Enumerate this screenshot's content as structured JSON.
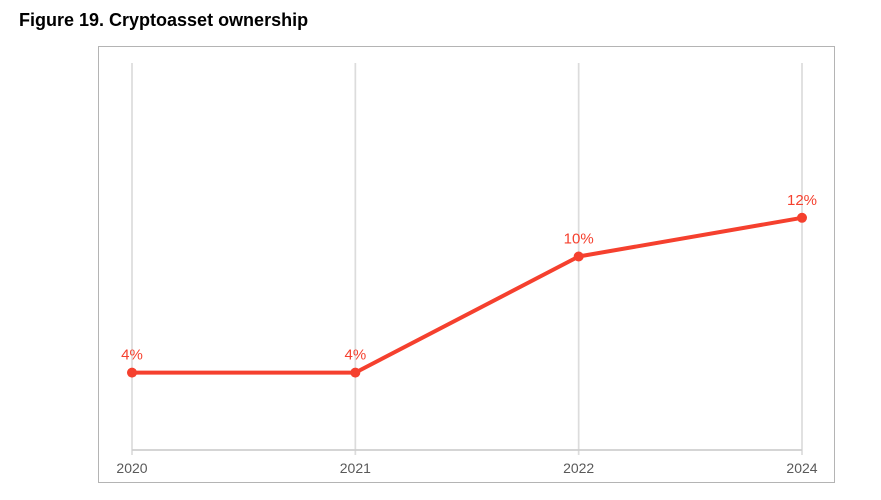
{
  "figure": {
    "title": "Figure 19. Cryptoasset ownership"
  },
  "chart_data": {
    "type": "line",
    "title": "Figure 19. Cryptoasset ownership",
    "categories": [
      "2020",
      "2021",
      "2022",
      "2024"
    ],
    "series": [
      {
        "name": "Cryptoasset ownership",
        "values": [
          4,
          4,
          10,
          12
        ]
      }
    ],
    "point_labels": [
      "4%",
      "4%",
      "10%",
      "12%"
    ],
    "xlabel": "",
    "ylabel": "",
    "ylim": [
      0,
      20
    ],
    "grid": "vertical-only",
    "legend": "none",
    "colors": {
      "line": "#f5402e",
      "point": "#f5402e",
      "data_label": "#f5402e",
      "gridline": "#dcdcdc",
      "axis_line": "#cfcfcf",
      "tick_label": "#595959",
      "plot_border": "#b4b4b4",
      "title": "#000000",
      "background": "#ffffff"
    }
  }
}
